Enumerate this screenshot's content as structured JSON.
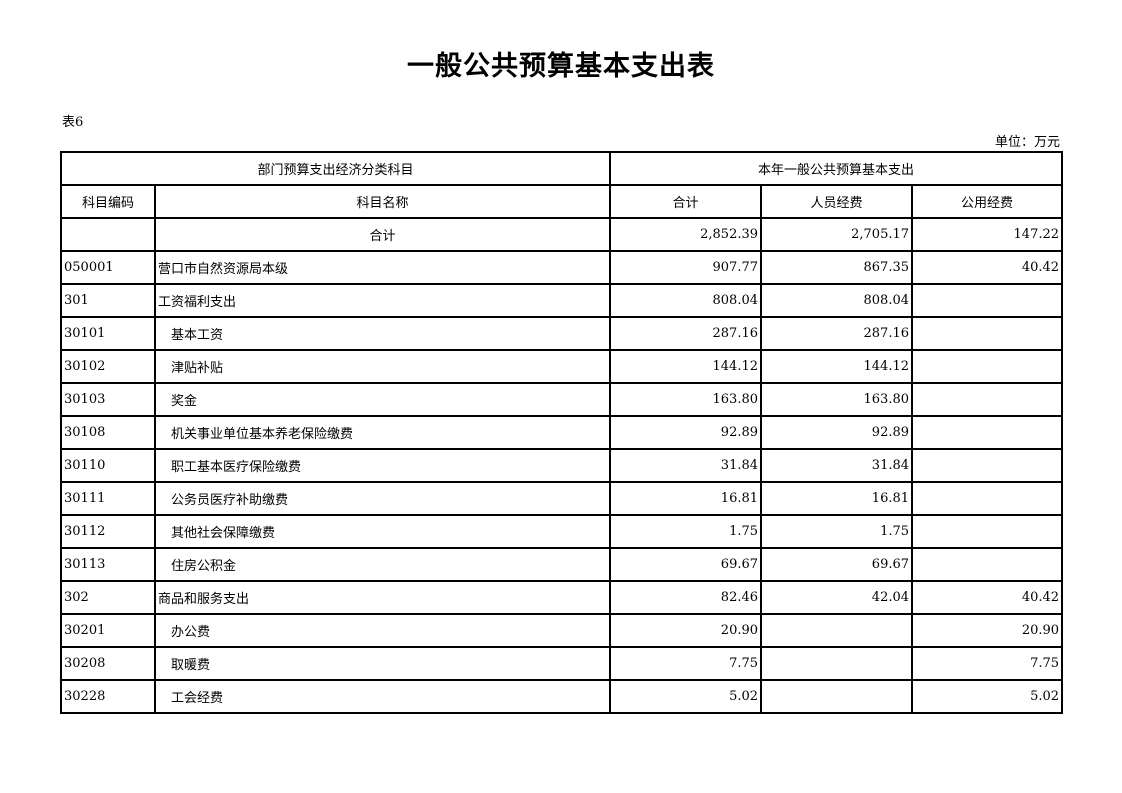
{
  "title": "一般公共预算基本支出表",
  "table_no": "表6",
  "unit": "单位：万元",
  "header": {
    "group_left": "部门预算支出经济分类科目",
    "group_right": "本年一般公共预算基本支出",
    "columns": [
      "科目编码",
      "科目名称",
      "合计",
      "人员经费",
      "公用经费"
    ]
  },
  "rows": [
    {
      "code": "",
      "name": "合计",
      "total": "2,852.39",
      "personnel": "2,705.17",
      "public": "147.22",
      "level": "sum"
    },
    {
      "code": "050001",
      "name": "营口市自然资源局本级",
      "total": "907.77",
      "personnel": "867.35",
      "public": "40.42",
      "level": "0"
    },
    {
      "code": "301",
      "name": "工资福利支出",
      "total": "808.04",
      "personnel": "808.04",
      "public": "",
      "level": "0"
    },
    {
      "code": "30101",
      "name": "基本工资",
      "total": "287.16",
      "personnel": "287.16",
      "public": "",
      "level": "1"
    },
    {
      "code": "30102",
      "name": "津贴补贴",
      "total": "144.12",
      "personnel": "144.12",
      "public": "",
      "level": "1"
    },
    {
      "code": "30103",
      "name": "奖金",
      "total": "163.80",
      "personnel": "163.80",
      "public": "",
      "level": "1"
    },
    {
      "code": "30108",
      "name": "机关事业单位基本养老保险缴费",
      "total": "92.89",
      "personnel": "92.89",
      "public": "",
      "level": "1"
    },
    {
      "code": "30110",
      "name": "职工基本医疗保险缴费",
      "total": "31.84",
      "personnel": "31.84",
      "public": "",
      "level": "1"
    },
    {
      "code": "30111",
      "name": "公务员医疗补助缴费",
      "total": "16.81",
      "personnel": "16.81",
      "public": "",
      "level": "1"
    },
    {
      "code": "30112",
      "name": "其他社会保障缴费",
      "total": "1.75",
      "personnel": "1.75",
      "public": "",
      "level": "1"
    },
    {
      "code": "30113",
      "name": "住房公积金",
      "total": "69.67",
      "personnel": "69.67",
      "public": "",
      "level": "1"
    },
    {
      "code": "302",
      "name": "商品和服务支出",
      "total": "82.46",
      "personnel": "42.04",
      "public": "40.42",
      "level": "0"
    },
    {
      "code": "30201",
      "name": "办公费",
      "total": "20.90",
      "personnel": "",
      "public": "20.90",
      "level": "1"
    },
    {
      "code": "30208",
      "name": "取暖费",
      "total": "7.75",
      "personnel": "",
      "public": "7.75",
      "level": "1"
    },
    {
      "code": "30228",
      "name": "工会经费",
      "total": "5.02",
      "personnel": "",
      "public": "5.02",
      "level": "1"
    }
  ]
}
